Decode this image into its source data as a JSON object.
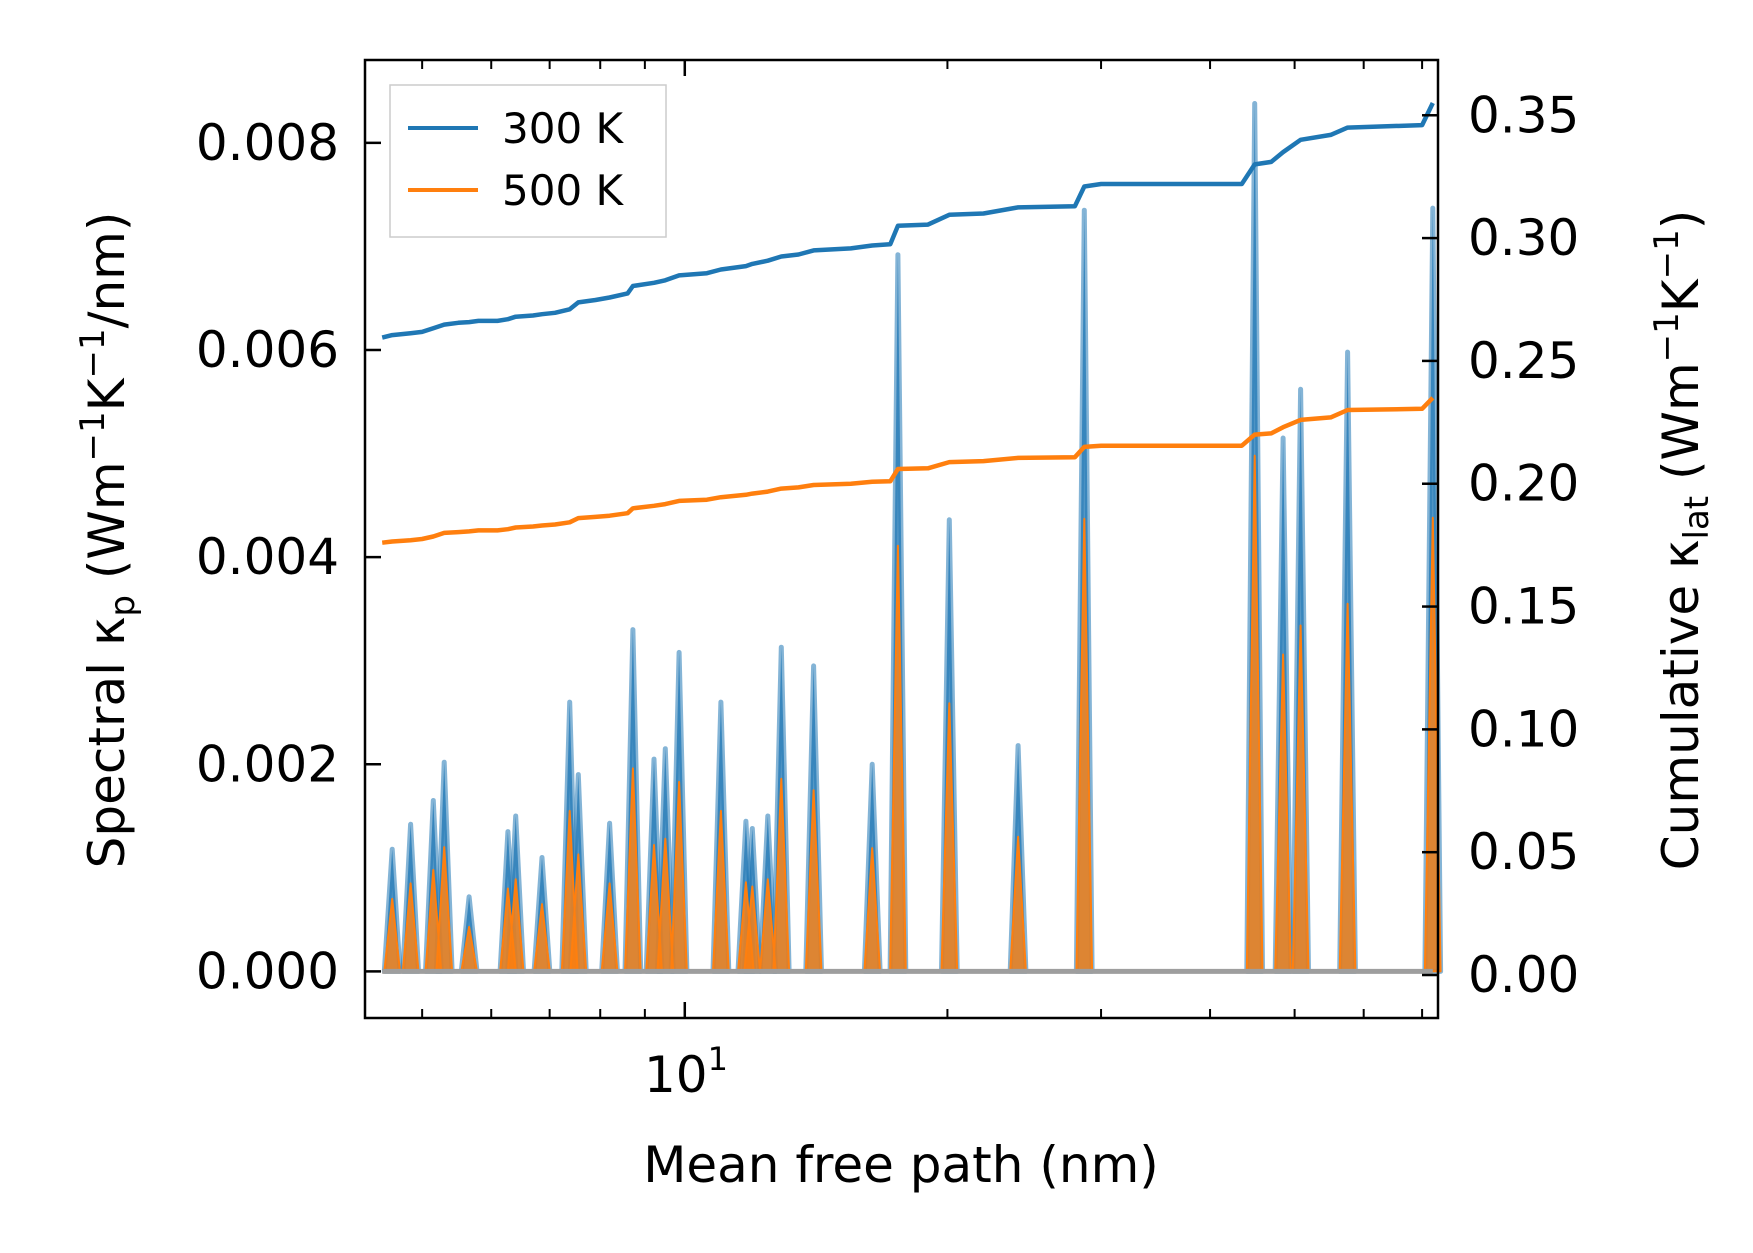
{
  "chart_data": {
    "type": "line",
    "xlabel": "Mean free path (nm)",
    "xscale": "log",
    "xlim": [
      4.3,
      73
    ],
    "x_tick_labels": [
      {
        "value": 10,
        "base": "10",
        "exp": "1"
      }
    ],
    "left_axis": {
      "label_parts": {
        "a": "Spectral κ",
        "b": "p",
        "c": " (Wm",
        "d": "−1",
        "e": "K",
        "f": "−1",
        "g": "/nm)"
      },
      "ylim": [
        -0.00045,
        0.0088
      ],
      "ticks": [
        "0.000",
        "0.002",
        "0.004",
        "0.006",
        "0.008"
      ],
      "tick_values": [
        0,
        0.002,
        0.004,
        0.006,
        0.008
      ]
    },
    "right_axis": {
      "label_parts": {
        "a": "Cumulative κ",
        "b": "lat",
        "c": " (Wm",
        "d": "−1",
        "e": "K",
        "f": "−1",
        "g": ")"
      },
      "ylim": [
        -0.0175,
        0.3725
      ],
      "ticks": [
        "0.00",
        "0.05",
        "0.10",
        "0.15",
        "0.20",
        "0.25",
        "0.30",
        "0.35"
      ],
      "tick_values": [
        0,
        0.05,
        0.1,
        0.15,
        0.2,
        0.25,
        0.3,
        0.35
      ]
    },
    "legend": {
      "position": "top-left",
      "entries": [
        {
          "label": "300 K",
          "color": "#1f77b4"
        },
        {
          "label": "500 K",
          "color": "#ff7f0e"
        }
      ]
    },
    "peaks": [
      {
        "x": 4.62,
        "v300": 0.00118,
        "v500": 0.0007
      },
      {
        "x": 4.85,
        "v300": 0.00142,
        "v500": 0.00085
      },
      {
        "x": 5.15,
        "v300": 0.00165,
        "v500": 0.00098
      },
      {
        "x": 5.3,
        "v300": 0.00202,
        "v500": 0.0012
      },
      {
        "x": 5.66,
        "v300": 0.00072,
        "v500": 0.00043
      },
      {
        "x": 6.27,
        "v300": 0.00135,
        "v500": 0.0008
      },
      {
        "x": 6.4,
        "v300": 0.0015,
        "v500": 0.00089
      },
      {
        "x": 6.86,
        "v300": 0.0011,
        "v500": 0.00065
      },
      {
        "x": 7.38,
        "v300": 0.0026,
        "v500": 0.00155
      },
      {
        "x": 7.55,
        "v300": 0.0019,
        "v500": 0.00113
      },
      {
        "x": 8.2,
        "v300": 0.00143,
        "v500": 0.00085
      },
      {
        "x": 8.72,
        "v300": 0.0033,
        "v500": 0.00196
      },
      {
        "x": 9.22,
        "v300": 0.00205,
        "v500": 0.00122
      },
      {
        "x": 9.5,
        "v300": 0.00215,
        "v500": 0.00128
      },
      {
        "x": 9.85,
        "v300": 0.00308,
        "v500": 0.00183
      },
      {
        "x": 11.0,
        "v300": 0.0026,
        "v500": 0.00155
      },
      {
        "x": 11.75,
        "v300": 0.00145,
        "v500": 0.00086
      },
      {
        "x": 11.95,
        "v300": 0.00138,
        "v500": 0.00082
      },
      {
        "x": 12.45,
        "v300": 0.0015,
        "v500": 0.00089
      },
      {
        "x": 12.9,
        "v300": 0.00313,
        "v500": 0.00186
      },
      {
        "x": 14.05,
        "v300": 0.00295,
        "v500": 0.00175
      },
      {
        "x": 16.4,
        "v300": 0.002,
        "v500": 0.00119
      },
      {
        "x": 17.55,
        "v300": 0.00692,
        "v500": 0.00411
      },
      {
        "x": 20.1,
        "v300": 0.00436,
        "v500": 0.00259
      },
      {
        "x": 24.1,
        "v300": 0.00218,
        "v500": 0.0013
      },
      {
        "x": 28.7,
        "v300": 0.00735,
        "v500": 0.00437
      },
      {
        "x": 45.0,
        "v300": 0.00838,
        "v500": 0.00498
      },
      {
        "x": 48.5,
        "v300": 0.00515,
        "v500": 0.00306
      },
      {
        "x": 50.8,
        "v300": 0.00562,
        "v500": 0.00334
      },
      {
        "x": 57.5,
        "v300": 0.00598,
        "v500": 0.00355
      },
      {
        "x": 72.0,
        "v300": 0.00737,
        "v500": 0.00438
      }
    ],
    "series": [
      {
        "name": "300 K",
        "color": "#1f77b4",
        "axis": "right",
        "points": [
          [
            4.5,
            0.2595
          ],
          [
            4.62,
            0.2605
          ],
          [
            4.85,
            0.2613
          ],
          [
            5.0,
            0.2618
          ],
          [
            5.15,
            0.2633
          ],
          [
            5.3,
            0.2648
          ],
          [
            5.5,
            0.2655
          ],
          [
            5.66,
            0.2658
          ],
          [
            5.8,
            0.2663
          ],
          [
            6.1,
            0.2663
          ],
          [
            6.27,
            0.267
          ],
          [
            6.4,
            0.268
          ],
          [
            6.7,
            0.2685
          ],
          [
            6.86,
            0.269
          ],
          [
            7.1,
            0.2696
          ],
          [
            7.38,
            0.271
          ],
          [
            7.55,
            0.2738
          ],
          [
            7.9,
            0.2748
          ],
          [
            8.2,
            0.2758
          ],
          [
            8.6,
            0.2775
          ],
          [
            8.72,
            0.2805
          ],
          [
            9.22,
            0.2818
          ],
          [
            9.5,
            0.2828
          ],
          [
            9.85,
            0.2848
          ],
          [
            10.6,
            0.2857
          ],
          [
            11.0,
            0.2872
          ],
          [
            11.75,
            0.2886
          ],
          [
            11.95,
            0.2895
          ],
          [
            12.45,
            0.2908
          ],
          [
            12.9,
            0.2925
          ],
          [
            13.5,
            0.2933
          ],
          [
            14.05,
            0.295
          ],
          [
            15.5,
            0.2958
          ],
          [
            16.4,
            0.297
          ],
          [
            17.2,
            0.2975
          ],
          [
            17.55,
            0.305
          ],
          [
            19.0,
            0.3055
          ],
          [
            20.1,
            0.3095
          ],
          [
            22.0,
            0.31
          ],
          [
            24.1,
            0.3125
          ],
          [
            28.0,
            0.313
          ],
          [
            28.7,
            0.321
          ],
          [
            30.0,
            0.322
          ],
          [
            43.5,
            0.322
          ],
          [
            45.0,
            0.33
          ],
          [
            47.0,
            0.331
          ],
          [
            48.5,
            0.335
          ],
          [
            50.8,
            0.34
          ],
          [
            55.0,
            0.342
          ],
          [
            57.5,
            0.345
          ],
          [
            70.0,
            0.346
          ],
          [
            72.0,
            0.355
          ]
        ]
      },
      {
        "name": "500 K",
        "color": "#ff7f0e",
        "axis": "right",
        "points": [
          [
            4.5,
            0.176
          ],
          [
            4.62,
            0.1765
          ],
          [
            4.85,
            0.177
          ],
          [
            5.0,
            0.1775
          ],
          [
            5.15,
            0.1785
          ],
          [
            5.3,
            0.18
          ],
          [
            5.5,
            0.1803
          ],
          [
            5.66,
            0.1806
          ],
          [
            5.8,
            0.181
          ],
          [
            6.1,
            0.181
          ],
          [
            6.27,
            0.1815
          ],
          [
            6.4,
            0.1822
          ],
          [
            6.7,
            0.1826
          ],
          [
            6.86,
            0.183
          ],
          [
            7.1,
            0.1834
          ],
          [
            7.38,
            0.1843
          ],
          [
            7.55,
            0.186
          ],
          [
            7.9,
            0.1865
          ],
          [
            8.2,
            0.187
          ],
          [
            8.6,
            0.188
          ],
          [
            8.72,
            0.19
          ],
          [
            9.22,
            0.191
          ],
          [
            9.5,
            0.1917
          ],
          [
            9.85,
            0.193
          ],
          [
            10.6,
            0.1935
          ],
          [
            11.0,
            0.1945
          ],
          [
            11.75,
            0.1955
          ],
          [
            11.95,
            0.196
          ],
          [
            12.45,
            0.1968
          ],
          [
            12.9,
            0.198
          ],
          [
            13.5,
            0.1985
          ],
          [
            14.05,
            0.1995
          ],
          [
            15.5,
            0.2
          ],
          [
            16.4,
            0.2008
          ],
          [
            17.2,
            0.201
          ],
          [
            17.55,
            0.206
          ],
          [
            19.0,
            0.2063
          ],
          [
            20.1,
            0.2088
          ],
          [
            22.0,
            0.2092
          ],
          [
            24.1,
            0.2105
          ],
          [
            28.0,
            0.2108
          ],
          [
            28.7,
            0.215
          ],
          [
            30.0,
            0.2155
          ],
          [
            43.5,
            0.2155
          ],
          [
            45.0,
            0.22
          ],
          [
            47.0,
            0.2205
          ],
          [
            48.5,
            0.223
          ],
          [
            50.8,
            0.226
          ],
          [
            55.0,
            0.227
          ],
          [
            57.5,
            0.23
          ],
          [
            70.0,
            0.2305
          ],
          [
            72.0,
            0.235
          ]
        ]
      }
    ]
  }
}
